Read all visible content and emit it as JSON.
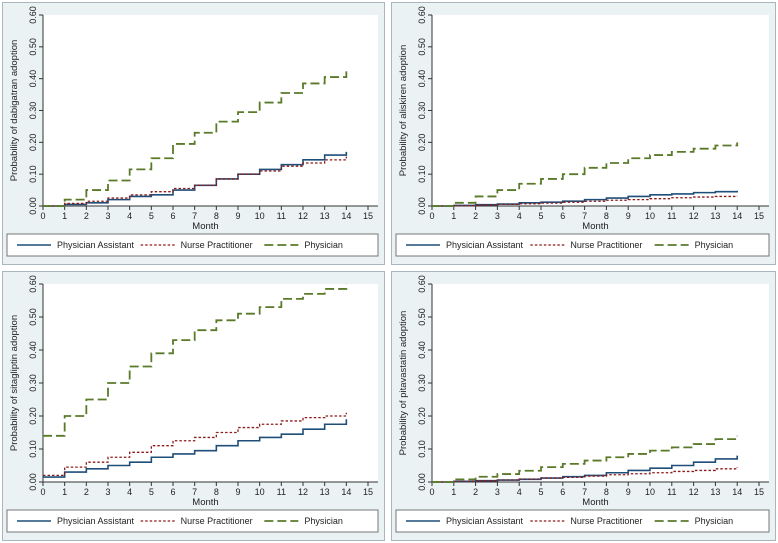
{
  "colors": {
    "physician_assistant": "#1f4e79",
    "nurse_practitioner": "#8b1a1a",
    "physician": "#5a7a2a",
    "panel_bg": "#eaf2f3",
    "panel_border": "#a9b6bd"
  },
  "chart_data": [
    {
      "type": "line",
      "step": true,
      "xlabel": "Month",
      "ylabel": "Probability of dabigatran adoption",
      "xticks": [
        0,
        1,
        2,
        3,
        4,
        5,
        6,
        7,
        8,
        9,
        10,
        11,
        12,
        13,
        14,
        15
      ],
      "yticks": [
        "0.00",
        "0.10",
        "0.20",
        "0.30",
        "0.40",
        "0.50",
        "0.60"
      ],
      "xlim": [
        0,
        15
      ],
      "ylim": [
        0,
        0.6
      ],
      "legend": [
        "Physician Assistant",
        "Nurse Practitioner",
        "Physician"
      ],
      "series": [
        {
          "name": "Physician Assistant",
          "x": [
            0,
            1,
            2,
            3,
            4,
            5,
            6,
            7,
            8,
            9,
            10,
            11,
            12,
            13,
            14
          ],
          "values": [
            0,
            0.005,
            0.01,
            0.02,
            0.03,
            0.035,
            0.05,
            0.065,
            0.085,
            0.1,
            0.115,
            0.13,
            0.145,
            0.16,
            0.17
          ]
        },
        {
          "name": "Nurse Practitioner",
          "x": [
            0,
            1,
            2,
            3,
            4,
            5,
            6,
            7,
            8,
            9,
            10,
            11,
            12,
            13,
            14
          ],
          "values": [
            0,
            0.008,
            0.015,
            0.025,
            0.035,
            0.045,
            0.055,
            0.065,
            0.085,
            0.1,
            0.11,
            0.125,
            0.135,
            0.145,
            0.155
          ]
        },
        {
          "name": "Physician",
          "x": [
            0,
            1,
            2,
            3,
            4,
            5,
            6,
            7,
            8,
            9,
            10,
            11,
            12,
            13,
            14
          ],
          "values": [
            0,
            0.02,
            0.05,
            0.08,
            0.115,
            0.15,
            0.195,
            0.23,
            0.265,
            0.295,
            0.325,
            0.355,
            0.385,
            0.405,
            0.425
          ]
        }
      ]
    },
    {
      "type": "line",
      "step": true,
      "xlabel": "Month",
      "ylabel": "Probability of aliskiren adoption",
      "xticks": [
        0,
        1,
        2,
        3,
        4,
        5,
        6,
        7,
        8,
        9,
        10,
        11,
        12,
        13,
        14,
        15
      ],
      "yticks": [
        "0.00",
        "0.10",
        "0.20",
        "0.30",
        "0.40",
        "0.50",
        "0.60"
      ],
      "xlim": [
        0,
        15
      ],
      "ylim": [
        0,
        0.6
      ],
      "legend": [
        "Physician Assistant",
        "Nurse Practitioner",
        "Physician"
      ],
      "series": [
        {
          "name": "Physician Assistant",
          "x": [
            0,
            1,
            2,
            3,
            4,
            5,
            6,
            7,
            8,
            9,
            10,
            11,
            12,
            13,
            14
          ],
          "values": [
            0,
            0.002,
            0.004,
            0.006,
            0.01,
            0.012,
            0.015,
            0.02,
            0.025,
            0.03,
            0.035,
            0.038,
            0.042,
            0.045,
            0.048
          ]
        },
        {
          "name": "Nurse Practitioner",
          "x": [
            0,
            1,
            2,
            3,
            4,
            5,
            6,
            7,
            8,
            9,
            10,
            11,
            12,
            13,
            14
          ],
          "values": [
            0,
            0.001,
            0.003,
            0.005,
            0.007,
            0.009,
            0.012,
            0.015,
            0.018,
            0.02,
            0.023,
            0.026,
            0.028,
            0.03,
            0.032
          ]
        },
        {
          "name": "Physician",
          "x": [
            0,
            1,
            2,
            3,
            4,
            5,
            6,
            7,
            8,
            9,
            10,
            11,
            12,
            13,
            14
          ],
          "values": [
            0,
            0.01,
            0.03,
            0.05,
            0.07,
            0.085,
            0.1,
            0.12,
            0.135,
            0.15,
            0.16,
            0.17,
            0.18,
            0.19,
            0.2
          ]
        }
      ]
    },
    {
      "type": "line",
      "step": true,
      "xlabel": "Month",
      "ylabel": "Probability of sitagliptin adoption",
      "xticks": [
        0,
        1,
        2,
        3,
        4,
        5,
        6,
        7,
        8,
        9,
        10,
        11,
        12,
        13,
        14,
        15
      ],
      "yticks": [
        "0.00",
        "0.10",
        "0.20",
        "0.30",
        "0.40",
        "0.50",
        "0.60"
      ],
      "xlim": [
        0,
        15
      ],
      "ylim": [
        0,
        0.6
      ],
      "legend": [
        "Physician Assistant",
        "Nurse Practitioner",
        "Physician"
      ],
      "series": [
        {
          "name": "Physician Assistant",
          "x": [
            0,
            1,
            2,
            3,
            4,
            5,
            6,
            7,
            8,
            9,
            10,
            11,
            12,
            13,
            14
          ],
          "values": [
            0.015,
            0.03,
            0.04,
            0.05,
            0.06,
            0.075,
            0.085,
            0.095,
            0.11,
            0.125,
            0.135,
            0.145,
            0.16,
            0.175,
            0.19
          ]
        },
        {
          "name": "Nurse Practitioner",
          "x": [
            0,
            1,
            2,
            3,
            4,
            5,
            6,
            7,
            8,
            9,
            10,
            11,
            12,
            13,
            14
          ],
          "values": [
            0.02,
            0.045,
            0.06,
            0.075,
            0.09,
            0.11,
            0.125,
            0.135,
            0.15,
            0.165,
            0.175,
            0.185,
            0.195,
            0.2,
            0.21
          ]
        },
        {
          "name": "Physician",
          "x": [
            0,
            1,
            2,
            3,
            4,
            5,
            6,
            7,
            8,
            9,
            10,
            11,
            12,
            13,
            14
          ],
          "values": [
            0.14,
            0.2,
            0.25,
            0.3,
            0.35,
            0.39,
            0.43,
            0.46,
            0.49,
            0.51,
            0.53,
            0.555,
            0.57,
            0.585,
            0.6
          ]
        }
      ]
    },
    {
      "type": "line",
      "step": true,
      "xlabel": "Month",
      "ylabel": "Probability of pitavastatin adoption",
      "xticks": [
        0,
        1,
        2,
        3,
        4,
        5,
        6,
        7,
        8,
        9,
        10,
        11,
        12,
        13,
        14,
        15
      ],
      "yticks": [
        "0.00",
        "0.10",
        "0.20",
        "0.30",
        "0.40",
        "0.50",
        "0.60"
      ],
      "xlim": [
        0,
        15
      ],
      "ylim": [
        0,
        0.6
      ],
      "legend": [
        "Physician Assistant",
        "Nurse Practitioner",
        "Physician"
      ],
      "series": [
        {
          "name": "Physician Assistant",
          "x": [
            0,
            1,
            2,
            3,
            4,
            5,
            6,
            7,
            8,
            9,
            10,
            11,
            12,
            13,
            14
          ],
          "values": [
            0,
            0.002,
            0.004,
            0.006,
            0.008,
            0.012,
            0.016,
            0.02,
            0.028,
            0.035,
            0.042,
            0.05,
            0.06,
            0.07,
            0.08
          ]
        },
        {
          "name": "Nurse Practitioner",
          "x": [
            0,
            1,
            2,
            3,
            4,
            5,
            6,
            7,
            8,
            9,
            10,
            11,
            12,
            13,
            14
          ],
          "values": [
            0,
            0.002,
            0.004,
            0.006,
            0.009,
            0.012,
            0.014,
            0.018,
            0.022,
            0.025,
            0.028,
            0.032,
            0.035,
            0.04,
            0.045
          ]
        },
        {
          "name": "Physician",
          "x": [
            0,
            1,
            2,
            3,
            4,
            5,
            6,
            7,
            8,
            9,
            10,
            11,
            12,
            13,
            14
          ],
          "values": [
            0,
            0.008,
            0.016,
            0.024,
            0.034,
            0.045,
            0.055,
            0.065,
            0.075,
            0.085,
            0.095,
            0.105,
            0.115,
            0.13,
            0.14
          ]
        }
      ]
    }
  ]
}
